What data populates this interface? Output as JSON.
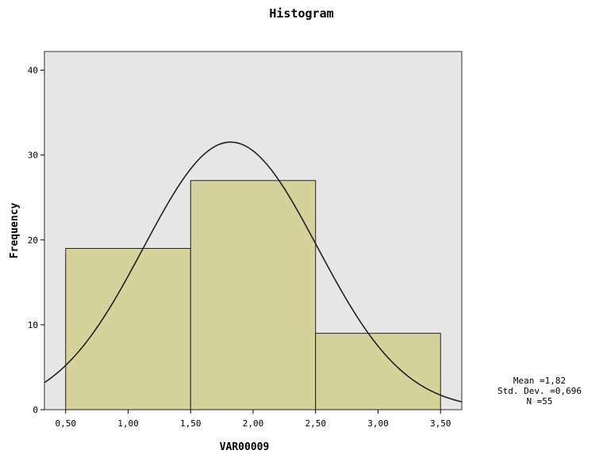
{
  "chart_data": {
    "type": "bar",
    "title": "Histogram",
    "xlabel": "VAR00009",
    "ylabel": "Frequency",
    "bins": [
      {
        "start": 0.5,
        "end": 1.5,
        "value": 19
      },
      {
        "start": 1.5,
        "end": 2.5,
        "value": 27
      },
      {
        "start": 2.5,
        "end": 3.5,
        "value": 9
      }
    ],
    "x_ticks": [
      0.5,
      1.0,
      1.5,
      2.0,
      2.5,
      3.0,
      3.5
    ],
    "x_tick_labels": [
      "0,50",
      "1,00",
      "1,50",
      "2,00",
      "2,50",
      "3,00",
      "3,50"
    ],
    "y_ticks": [
      0,
      10,
      20,
      30,
      40
    ],
    "y_tick_labels": [
      "0",
      "10",
      "20",
      "30",
      "40"
    ],
    "xlim": [
      0.33,
      3.67
    ],
    "ylim": [
      0,
      42.2
    ],
    "grid": false,
    "normal_curve": {
      "mean": 1.82,
      "std": 0.696,
      "n": 55,
      "bin_width": 1.0
    },
    "stats_box": {
      "mean": "Mean =1,82",
      "std": "Std. Dev. =0,696",
      "n": "N =55"
    },
    "colors": {
      "bar_fill": "#d6d29c",
      "bar_stroke": "#222222",
      "plot_bg": "#e6e6e6",
      "curve": "#222222"
    }
  }
}
